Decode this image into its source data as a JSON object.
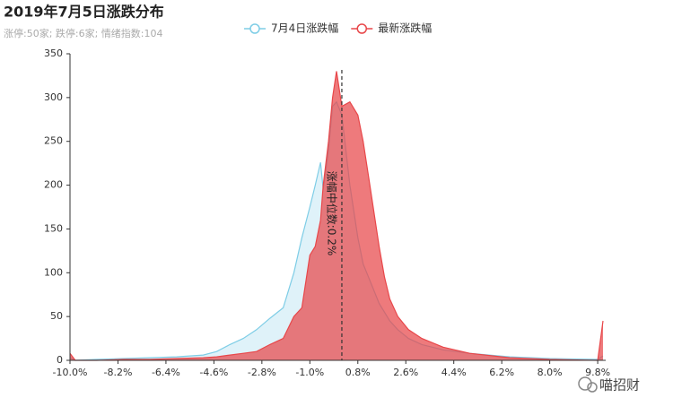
{
  "chart_data": {
    "type": "area",
    "title": "2019年7月5日涨跌分布",
    "subtitle": "涨停:50家; 跌停:6家; 情绪指数:104",
    "x": [
      -10,
      -9.8,
      -9,
      -8,
      -7,
      -6,
      -5,
      -4.5,
      -4,
      -3.5,
      -3,
      -2.5,
      -2,
      -1.6,
      -1.3,
      -1,
      -0.8,
      -0.6,
      -0.5,
      -0.3,
      -0.15,
      0,
      0.2,
      0.5,
      0.8,
      1,
      1.2,
      1.4,
      1.6,
      1.8,
      2,
      2.3,
      2.7,
      3.2,
      4,
      5,
      6.5,
      8,
      9.8,
      10
    ],
    "series": [
      {
        "name": "7月4日涨跌幅",
        "color": "#7ecde6",
        "values": [
          3,
          0,
          1,
          2,
          3,
          4,
          6,
          10,
          18,
          25,
          35,
          48,
          60,
          100,
          140,
          175,
          200,
          226,
          195,
          240,
          290,
          295,
          280,
          200,
          140,
          110,
          95,
          80,
          65,
          55,
          45,
          35,
          25,
          18,
          12,
          8,
          4,
          2,
          1,
          5
        ]
      },
      {
        "name": "最新涨跌幅",
        "color": "#e8474a",
        "values": [
          8,
          0,
          0,
          1,
          1,
          2,
          3,
          4,
          6,
          8,
          10,
          18,
          25,
          50,
          60,
          120,
          130,
          160,
          200,
          250,
          300,
          330,
          290,
          295,
          280,
          250,
          210,
          170,
          130,
          95,
          70,
          50,
          35,
          25,
          15,
          8,
          3,
          1,
          0,
          45
        ]
      }
    ],
    "xlim": [
      -10,
      10.1
    ],
    "xticks": [
      {
        "value": -10,
        "label": "-10.0%"
      },
      {
        "value": -8.2,
        "label": "-8.2%"
      },
      {
        "value": -6.4,
        "label": "-6.4%"
      },
      {
        "value": -4.6,
        "label": "-4.6%"
      },
      {
        "value": -2.8,
        "label": "-2.8%"
      },
      {
        "value": -1,
        "label": "-1.0%"
      },
      {
        "value": 0.8,
        "label": "0.8%"
      },
      {
        "value": 2.6,
        "label": "2.6%"
      },
      {
        "value": 4.4,
        "label": "4.4%"
      },
      {
        "value": 6.2,
        "label": "6.2%"
      },
      {
        "value": 8,
        "label": "8.0%"
      },
      {
        "value": 9.8,
        "label": "9.8%"
      }
    ],
    "ylim": [
      0,
      350
    ],
    "yticks": [
      0,
      50,
      100,
      150,
      200,
      250,
      300,
      350
    ],
    "median": {
      "value": 0.2,
      "label": "涨幅中位数:0.2%"
    },
    "watermark": "喵招财"
  }
}
